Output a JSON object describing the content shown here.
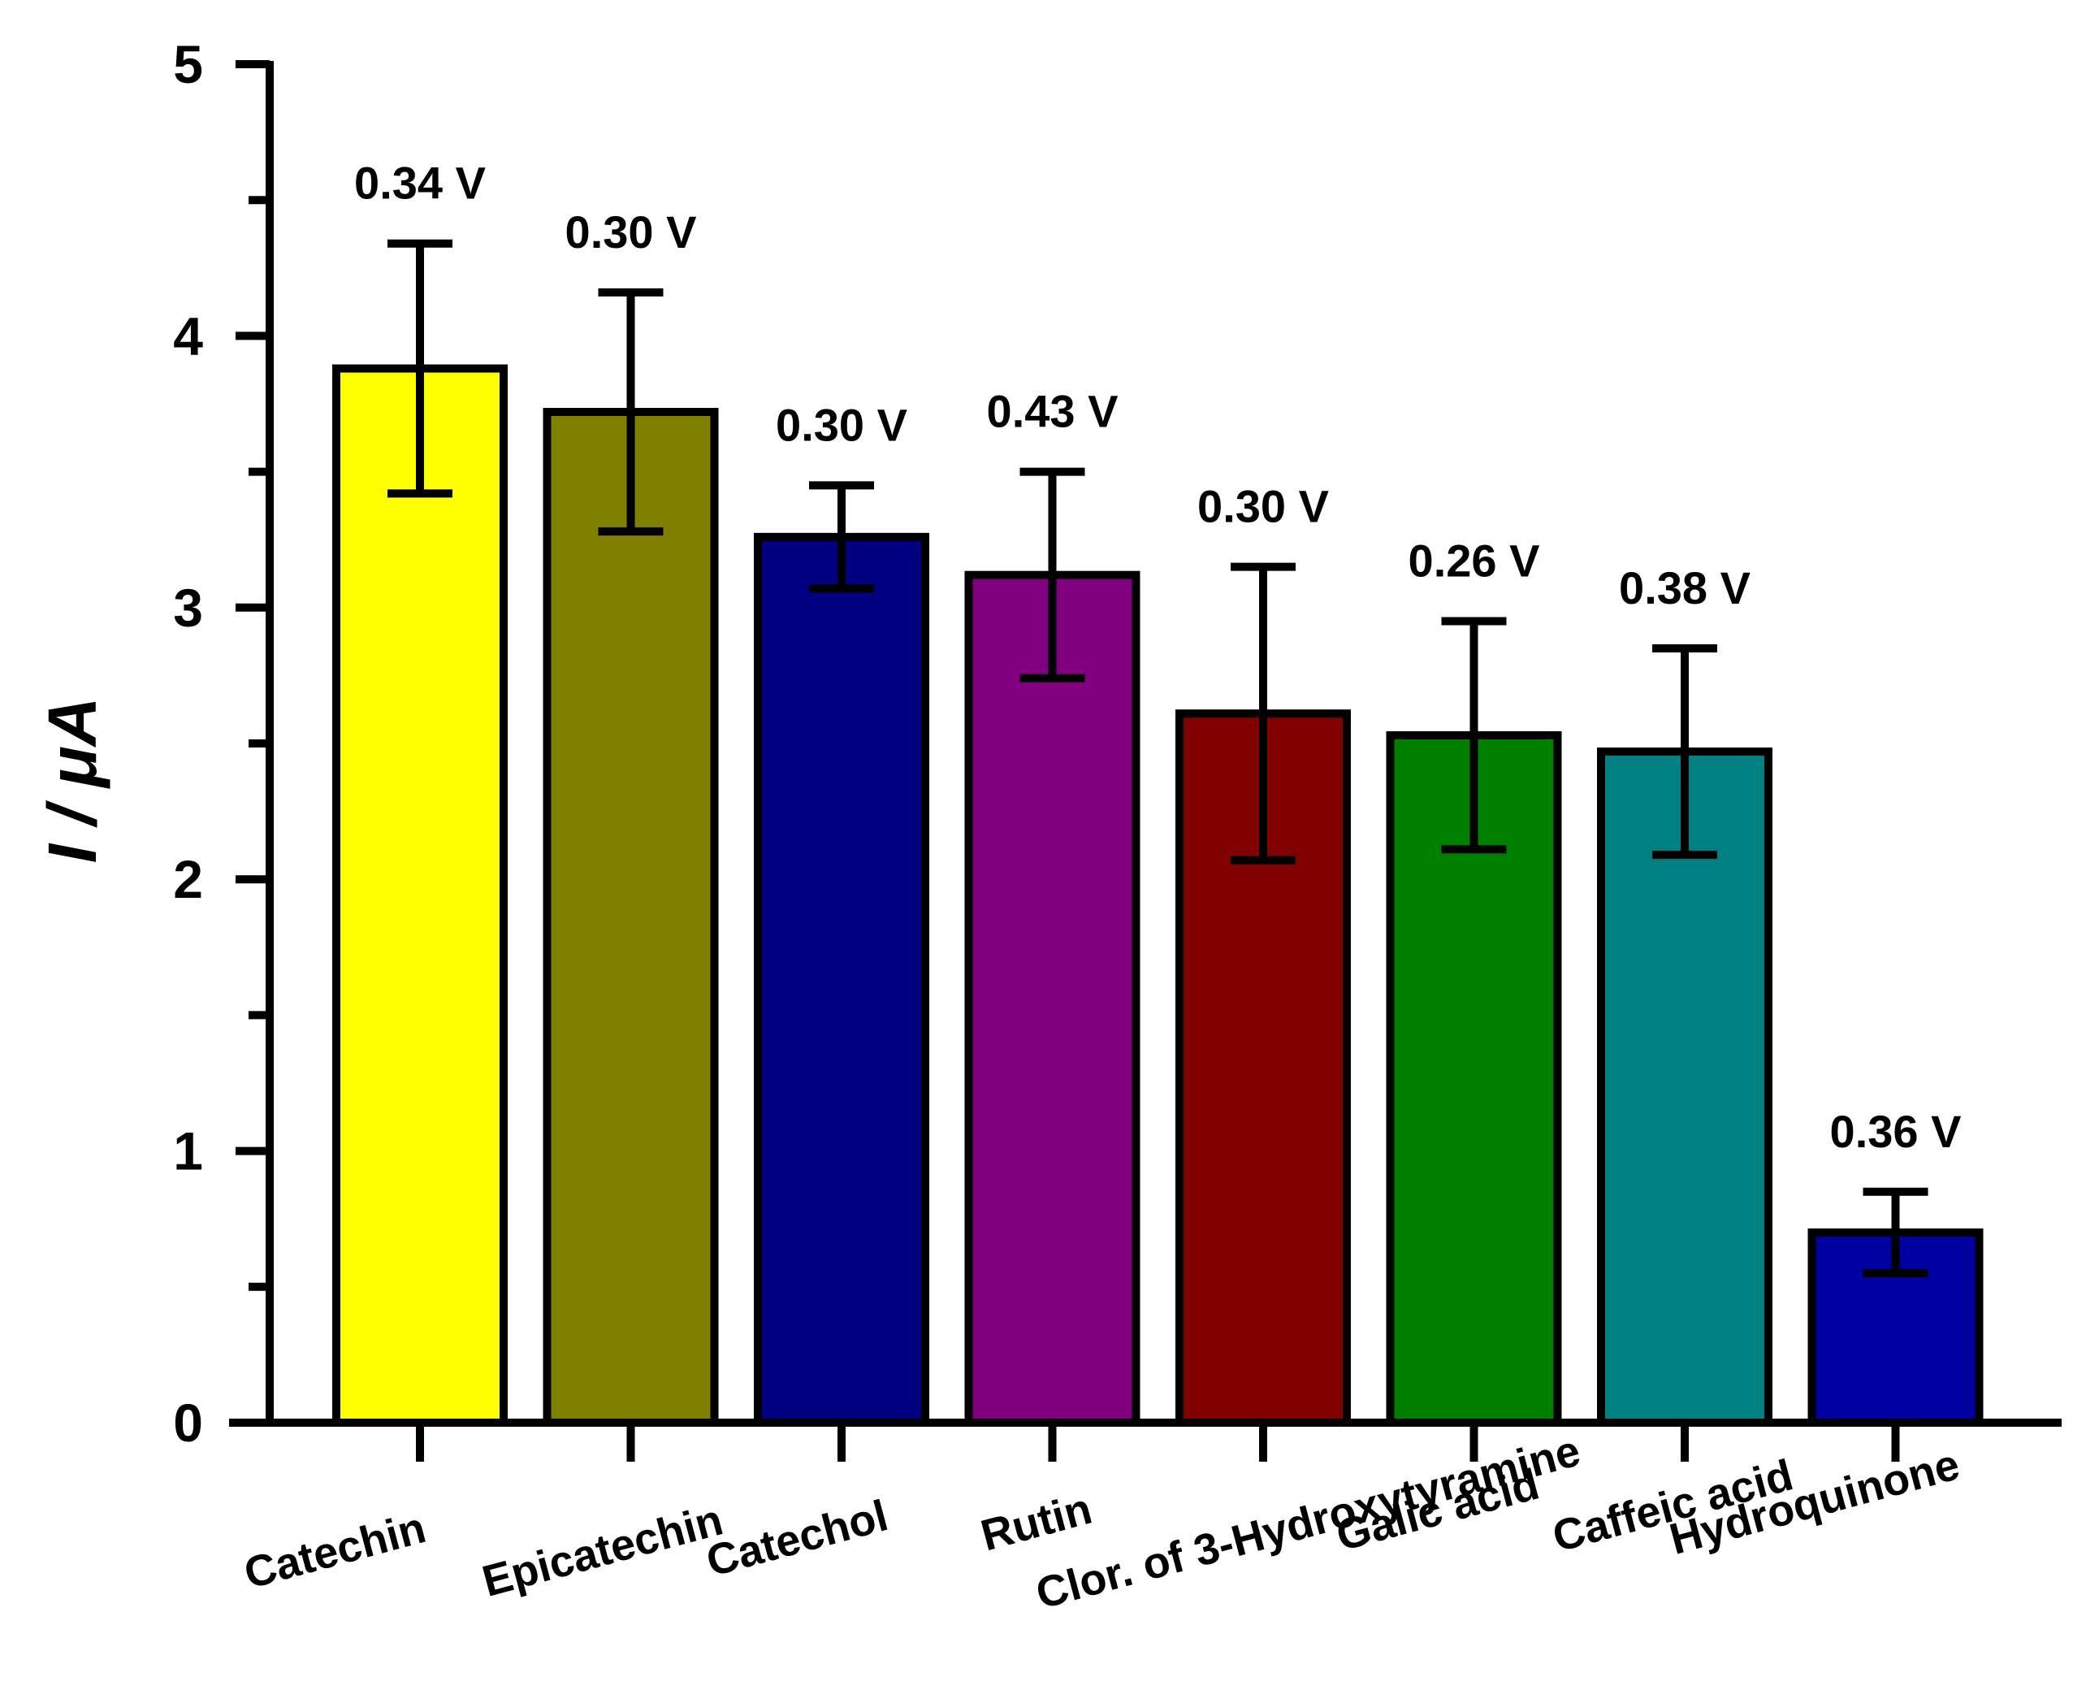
{
  "chart_data": {
    "type": "bar",
    "title": "",
    "xlabel": "",
    "ylabel": "I / μA",
    "ylim": [
      0,
      5
    ],
    "yticks": [
      0,
      1,
      2,
      3,
      4,
      5
    ],
    "grid": false,
    "categories": [
      "Catechin",
      "Epicatechin",
      "Catechol",
      "Rutin",
      "Clor. of 3-Hydroxytyramine",
      "Galic acid",
      "Caffeic acid",
      "Hydroquinone"
    ],
    "values": [
      3.88,
      3.72,
      3.26,
      3.12,
      2.61,
      2.53,
      2.47,
      0.7
    ],
    "errors": [
      0.46,
      0.44,
      0.19,
      0.38,
      0.54,
      0.42,
      0.38,
      0.15
    ],
    "annotations": [
      "0.34 V",
      "0.30 V",
      "0.30 V",
      "0.43 V",
      "0.30 V",
      "0.26 V",
      "0.38 V",
      "0.36 V"
    ],
    "colors": [
      "#ffff00",
      "#808000",
      "#000080",
      "#800080",
      "#800000",
      "#008000",
      "#008080",
      "#0000a0"
    ]
  }
}
